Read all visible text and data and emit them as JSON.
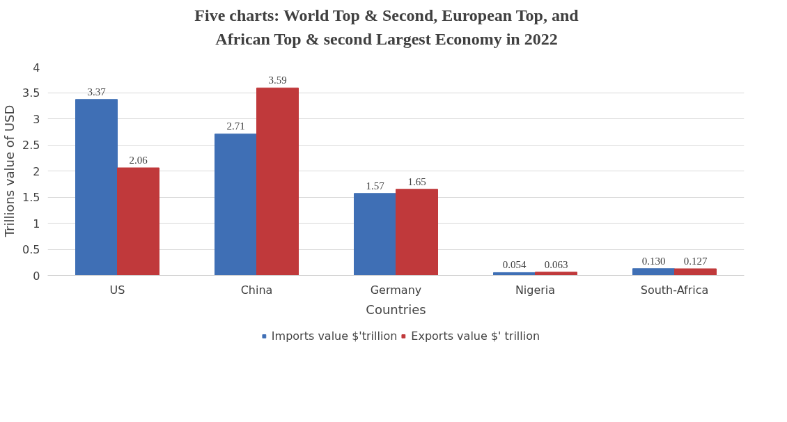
{
  "chart_data": {
    "type": "bar",
    "title": "Five charts: World Top & Second, European Top, and\nAfrican Top & second Largest Economy in 2022",
    "xlabel": "Countries",
    "ylabel": "Trillions value of USD",
    "categories": [
      "US",
      "China",
      "Germany",
      "Nigeria",
      "South-Africa"
    ],
    "series": [
      {
        "name": "Imports value $'trillion",
        "color": "#3f6fb5",
        "values": [
          3.37,
          2.71,
          1.57,
          0.054,
          0.13
        ],
        "value_labels": [
          "3.37",
          "2.71",
          "1.57",
          "0.054",
          "0.130"
        ]
      },
      {
        "name": "Exports value $' trillion",
        "color": "#c0393b",
        "values": [
          2.06,
          3.59,
          1.65,
          0.063,
          0.127
        ],
        "value_labels": [
          "2.06",
          "3.59",
          "1.65",
          "0.063",
          "0.127"
        ]
      }
    ],
    "ylim": [
      0,
      4
    ],
    "yticks": [
      0,
      {
        "value": 0.5,
        "label": "0.5"
      },
      1,
      {
        "value": 1.5,
        "label": "1.5"
      },
      2,
      {
        "value": 2.5,
        "label": "2.5"
      },
      3,
      {
        "value": 3.5,
        "label": "3.5"
      },
      4
    ],
    "grid": "y",
    "legend": "bottom"
  }
}
